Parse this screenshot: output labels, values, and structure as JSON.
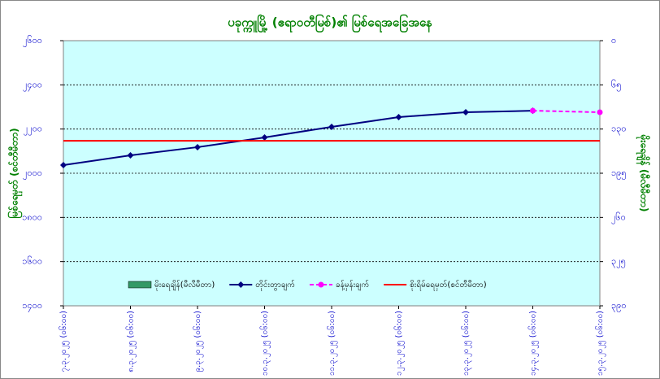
{
  "chart_data": {
    "type": "line",
    "title": "ပခုက္ကူမြို့ (ဧရာဝတီမြစ်)၏ မြစ်ရေအခြေအနေ",
    "ylabel": "မြစ်ရေမှတ် (စင်တီမီတာ)",
    "y2label": "မိုးရေချိန် (မီလီမီတာ)",
    "categories": [
      "၇.၃.၂၀၂၅ (၀၆:၀၀)",
      "၈.၃.၂၀၂၅ (၀၆:၀၀)",
      "၉.၃.၂၀၂၅ (၀၆:၀၀)",
      "၁၀.၃.၂၀၂၅ (၀၆:၀၀)",
      "၁၁.၃.၂၀၂၅ (၀၆:၀၀)",
      "၁၂.၃.၂၀၂၅ (၀၆:၀၀)",
      "၁၃.၃.၂၀၂၅ (၀၆:၀၀)",
      "၁၄.၃.၂၀၂၅ (၀၆:၀၀)",
      "၁၅.၃.၂၀၂၅ (၀၆:၀၀)"
    ],
    "series": [
      {
        "name": "မိုးရေချိန်(မီလီမီတာ)",
        "type": "bar",
        "axis": "y2",
        "color": "#339966",
        "values": [
          0,
          0,
          0,
          0,
          0,
          0,
          0,
          0,
          0
        ]
      },
      {
        "name": "တိုင်းတွာချက်",
        "type": "line",
        "color": "#000080",
        "marker": "diamond",
        "values": [
          2037,
          2081,
          2118,
          2162,
          2210,
          2254,
          2276,
          2283,
          null
        ]
      },
      {
        "name": "ခန့်မှန်းချက်",
        "type": "line",
        "color": "#ff00ff",
        "marker": "circle",
        "dashed": true,
        "values": [
          null,
          null,
          null,
          null,
          null,
          null,
          null,
          2283,
          2276
        ]
      },
      {
        "name": "စိုးရိမ်ရေမှတ်(စင်တီမီတာ)",
        "type": "line",
        "color": "#ff0000",
        "values": [
          2147,
          2147,
          2147,
          2147,
          2147,
          2147,
          2147,
          2147,
          2147
        ]
      }
    ],
    "ylim": [
      1400,
      2600
    ],
    "yticks": [
      {
        "value": 1400,
        "label": "၁၄၀၀"
      },
      {
        "value": 1600,
        "label": "၁၆၀၀"
      },
      {
        "value": 1800,
        "label": "၁၈၀၀"
      },
      {
        "value": 2000,
        "label": "၂၀၀၀"
      },
      {
        "value": 2200,
        "label": "၂၂၀၀"
      },
      {
        "value": 2400,
        "label": "၂၄၀၀"
      },
      {
        "value": 2600,
        "label": "၂၆၀၀"
      }
    ],
    "y2lim": [
      390,
      0
    ],
    "y2ticks": [
      {
        "value": 0,
        "label": "၀"
      },
      {
        "value": 65,
        "label": "၆၅"
      },
      {
        "value": 130,
        "label": "၁၃၀"
      },
      {
        "value": 195,
        "label": "၁၉၅"
      },
      {
        "value": 260,
        "label": "၂၆၀"
      },
      {
        "value": 325,
        "label": "၃၂၅"
      },
      {
        "value": 390,
        "label": "၃၉၀"
      }
    ],
    "grid": true,
    "legend": "bottom"
  }
}
